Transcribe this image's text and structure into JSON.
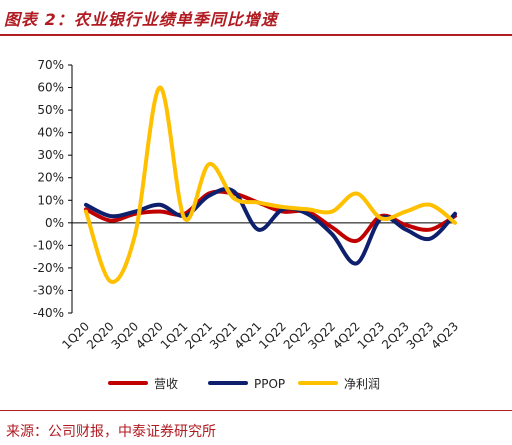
{
  "title": "图表 2：农业银行业绩单季同比增速",
  "source": "来源：公司财报，中泰证券研究所",
  "chart_data": {
    "type": "line",
    "categories": [
      "1Q20",
      "2Q20",
      "3Q20",
      "4Q20",
      "1Q21",
      "2Q21",
      "3Q21",
      "4Q21",
      "1Q22",
      "2Q22",
      "3Q22",
      "4Q22",
      "1Q23",
      "2Q23",
      "3Q23",
      "4Q23"
    ],
    "ylim": [
      -40,
      70
    ],
    "yticks": [
      "70%",
      "60%",
      "50%",
      "40%",
      "30%",
      "20%",
      "10%",
      "0%",
      "-10%",
      "-20%",
      "-30%",
      "-40%"
    ],
    "ytick_values": [
      70,
      60,
      50,
      40,
      30,
      20,
      10,
      0,
      -10,
      -20,
      -30,
      -40
    ],
    "series": [
      {
        "name": "营收",
        "color": "#c00000",
        "values": [
          6,
          1,
          4,
          5,
          4,
          13,
          13,
          9,
          5,
          5,
          -2,
          -8,
          3,
          -1,
          -3,
          3
        ]
      },
      {
        "name": "PPOP",
        "color": "#0e1f6e",
        "values": [
          8,
          3,
          5,
          8,
          3,
          12,
          14,
          -3,
          6,
          4,
          -5,
          -18,
          2,
          -3,
          -7,
          4
        ]
      },
      {
        "name": "净利润",
        "color": "#ffc000",
        "values": [
          5,
          -26,
          -5,
          60,
          2,
          26,
          11,
          9,
          7,
          6,
          5,
          13,
          2,
          5,
          8,
          0
        ]
      }
    ],
    "legend_position": "bottom"
  }
}
